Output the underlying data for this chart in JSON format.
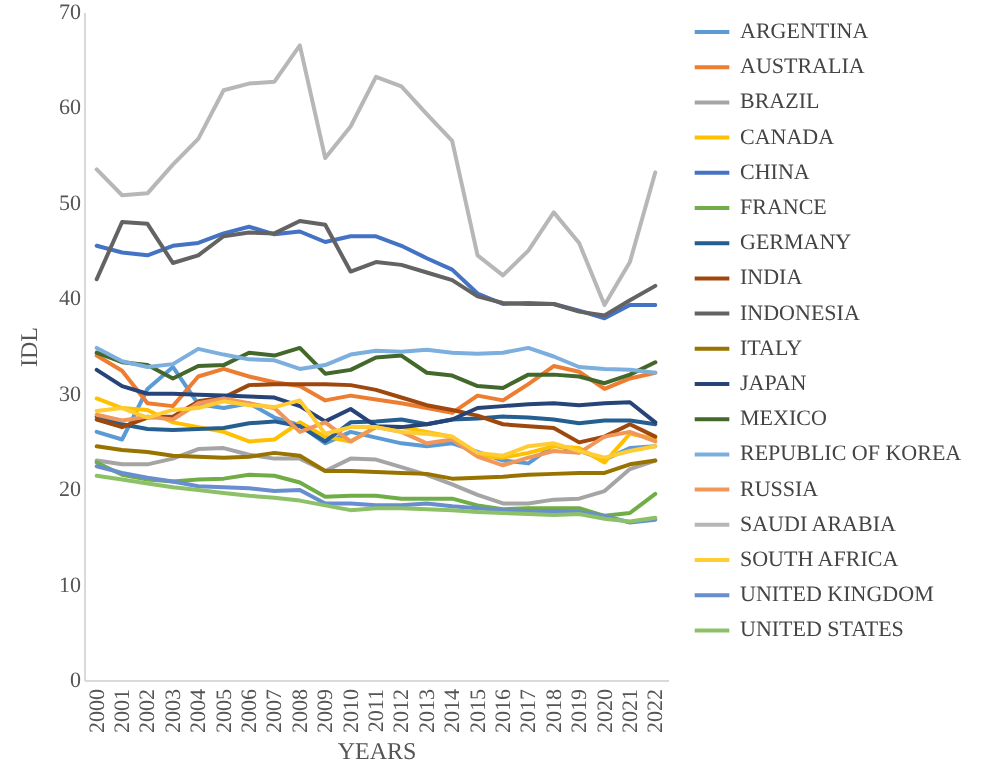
{
  "chart_data": {
    "type": "line",
    "xlabel": "YEARS",
    "ylabel": "IDL",
    "ylim": [
      0,
      70
    ],
    "yticks": [
      0,
      10,
      20,
      30,
      40,
      50,
      60,
      70
    ],
    "grid": false,
    "legend": "right",
    "marker": "none",
    "line_style": "solid",
    "categories": [
      "2000",
      "2001",
      "2002",
      "2003",
      "2004",
      "2005",
      "2006",
      "2007",
      "2008",
      "2009",
      "2010",
      "2011",
      "2012",
      "2013",
      "2014",
      "2015",
      "2016",
      "2017",
      "2018",
      "2019",
      "2020",
      "2021",
      "2022"
    ],
    "series": [
      {
        "name": "ARGENTINA",
        "color": "#5b9bd5",
        "values": [
          26.0,
          25.2,
          30.5,
          32.8,
          28.9,
          28.5,
          29.0,
          27.5,
          26.7,
          24.8,
          26.0,
          25.4,
          24.8,
          24.5,
          24.8,
          23.9,
          23.0,
          22.7,
          24.6,
          24.0,
          23.1,
          24.3,
          24.5
        ]
      },
      {
        "name": "AUSTRALIA",
        "color": "#ed7d31",
        "values": [
          34.0,
          32.4,
          29.0,
          28.7,
          31.8,
          32.6,
          31.8,
          31.2,
          30.8,
          29.3,
          29.8,
          29.4,
          29.0,
          28.5,
          28.0,
          29.8,
          29.3,
          31.0,
          32.9,
          32.3,
          30.5,
          31.6,
          32.2
        ]
      },
      {
        "name": "BRAZIL",
        "color": "#a5a5a5",
        "values": [
          23.0,
          22.6,
          22.6,
          23.2,
          24.2,
          24.3,
          23.6,
          23.2,
          23.2,
          21.9,
          23.2,
          23.1,
          22.3,
          21.5,
          20.5,
          19.4,
          18.5,
          18.5,
          18.9,
          19.0,
          19.8,
          22.1,
          23.0
        ]
      },
      {
        "name": "CANADA",
        "color": "#ffc000",
        "values": [
          29.5,
          28.5,
          28.3,
          27.0,
          26.5,
          26.0,
          25.0,
          25.2,
          27.0,
          25.5,
          25.0,
          26.5,
          26.5,
          26.0,
          25.5,
          23.5,
          23.3,
          23.8,
          24.5,
          24.3,
          22.8,
          25.8,
          25.3
        ]
      },
      {
        "name": "CHINA",
        "color": "#4472c4",
        "values": [
          45.5,
          44.8,
          44.5,
          45.5,
          45.8,
          46.8,
          47.5,
          46.7,
          47.0,
          45.9,
          46.5,
          46.5,
          45.5,
          44.2,
          43.0,
          40.5,
          39.4,
          39.5,
          39.4,
          38.7,
          37.9,
          39.3,
          39.3
        ]
      },
      {
        "name": "FRANCE",
        "color": "#70ad47",
        "values": [
          22.8,
          21.5,
          21.0,
          20.8,
          21.0,
          21.1,
          21.5,
          21.4,
          20.7,
          19.2,
          19.3,
          19.3,
          19.0,
          19.0,
          19.0,
          18.3,
          17.9,
          18.0,
          18.0,
          18.0,
          17.2,
          17.5,
          19.5
        ]
      },
      {
        "name": "GERMANY",
        "color": "#255e91",
        "values": [
          27.6,
          26.8,
          26.3,
          26.2,
          26.3,
          26.4,
          26.9,
          27.1,
          26.6,
          25.0,
          27.0,
          27.1,
          27.3,
          26.8,
          27.3,
          27.4,
          27.6,
          27.5,
          27.3,
          26.9,
          27.2,
          27.2,
          26.8
        ]
      },
      {
        "name": "INDIA",
        "color": "#9e480e",
        "values": [
          27.3,
          26.5,
          27.5,
          27.6,
          29.2,
          29.6,
          30.9,
          31.0,
          31.0,
          31.0,
          30.9,
          30.4,
          29.6,
          28.8,
          28.3,
          27.7,
          26.8,
          26.6,
          26.4,
          24.9,
          25.5,
          26.8,
          25.5
        ]
      },
      {
        "name": "INDONESIA",
        "color": "#636363",
        "values": [
          42.0,
          48.0,
          47.8,
          43.7,
          44.5,
          46.5,
          46.9,
          46.8,
          48.1,
          47.7,
          42.8,
          43.8,
          43.5,
          42.7,
          41.9,
          40.2,
          39.5,
          39.4,
          39.4,
          38.6,
          38.2,
          39.8,
          41.3
        ]
      },
      {
        "name": "ITALY",
        "color": "#997300",
        "values": [
          24.5,
          24.1,
          23.9,
          23.5,
          23.4,
          23.3,
          23.4,
          23.8,
          23.5,
          21.9,
          21.9,
          21.8,
          21.7,
          21.6,
          21.1,
          21.2,
          21.3,
          21.5,
          21.6,
          21.7,
          21.7,
          22.6,
          23.0
        ]
      },
      {
        "name": "JAPAN",
        "color": "#264478",
        "values": [
          32.5,
          30.8,
          30.0,
          30.0,
          29.9,
          29.8,
          29.7,
          29.6,
          28.7,
          27.1,
          28.4,
          26.6,
          26.5,
          26.8,
          27.3,
          28.5,
          28.7,
          28.9,
          29.0,
          28.8,
          29.0,
          29.1,
          27.0
        ]
      },
      {
        "name": "MEXICO",
        "color": "#43682b",
        "values": [
          34.3,
          33.3,
          33.0,
          31.6,
          32.9,
          33.0,
          34.3,
          34.0,
          34.8,
          32.1,
          32.5,
          33.8,
          34.0,
          32.2,
          31.9,
          30.8,
          30.6,
          32.0,
          32.0,
          31.8,
          31.1,
          32.0,
          33.3
        ]
      },
      {
        "name": "REPUBLIC OF KOREA",
        "color": "#7cafdd",
        "values": [
          34.8,
          33.4,
          32.8,
          33.1,
          34.7,
          34.1,
          33.6,
          33.5,
          32.6,
          33.0,
          34.1,
          34.5,
          34.4,
          34.6,
          34.3,
          34.2,
          34.3,
          34.8,
          33.9,
          32.8,
          32.6,
          32.5,
          32.2
        ]
      },
      {
        "name": "RUSSIA",
        "color": "#f1975a",
        "values": [
          27.8,
          27.2,
          27.6,
          27.3,
          29.0,
          29.5,
          29.0,
          28.5,
          26.0,
          27.0,
          25.0,
          26.5,
          26.0,
          24.8,
          25.2,
          23.4,
          22.5,
          23.3,
          24.0,
          23.8,
          25.5,
          26.0,
          25.0
        ]
      },
      {
        "name": "SAUDI ARABIA",
        "color": "#b7b7b7",
        "values": [
          53.5,
          50.8,
          51.0,
          54.0,
          56.7,
          61.8,
          62.5,
          62.7,
          66.5,
          54.7,
          58.0,
          63.2,
          62.2,
          59.3,
          56.5,
          44.5,
          42.4,
          45.0,
          49.0,
          45.8,
          39.3,
          43.8,
          53.2
        ]
      },
      {
        "name": "SOUTH AFRICA",
        "color": "#ffcd33",
        "values": [
          28.2,
          28.5,
          27.5,
          28.3,
          28.5,
          29.2,
          28.8,
          28.6,
          29.3,
          25.8,
          26.5,
          26.5,
          26.0,
          25.8,
          25.5,
          23.8,
          23.5,
          24.5,
          24.8,
          24.0,
          23.3,
          24.0,
          24.5
        ]
      },
      {
        "name": "UNITED KINGDOM",
        "color": "#698ed0",
        "values": [
          22.4,
          21.7,
          21.2,
          20.8,
          20.3,
          20.2,
          20.1,
          19.8,
          19.9,
          18.5,
          18.5,
          18.3,
          18.3,
          18.5,
          18.2,
          18.0,
          17.8,
          17.7,
          17.7,
          17.6,
          17.2,
          16.5,
          16.8
        ]
      },
      {
        "name": "UNITED STATES",
        "color": "#8cc168",
        "values": [
          21.4,
          21.0,
          20.6,
          20.2,
          19.9,
          19.6,
          19.3,
          19.1,
          18.8,
          18.3,
          17.8,
          18.0,
          18.0,
          17.9,
          17.8,
          17.6,
          17.5,
          17.4,
          17.3,
          17.4,
          16.9,
          16.6,
          17.0
        ]
      }
    ]
  }
}
